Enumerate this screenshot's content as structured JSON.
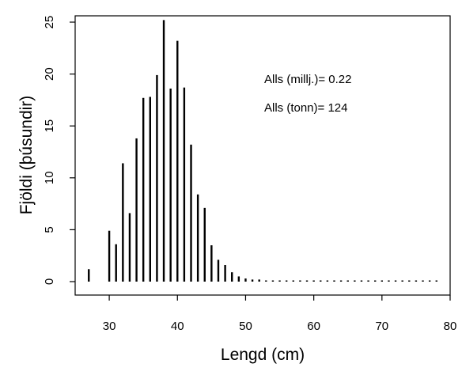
{
  "chart_data": {
    "type": "bar",
    "title": "",
    "xlabel": "Lengd (cm)",
    "ylabel": "Fjöldi (þúsundir)",
    "xlim": [
      25,
      80
    ],
    "ylim": [
      0,
      26.2
    ],
    "xticks": [
      30,
      40,
      50,
      60,
      70,
      80
    ],
    "yticks": [
      0,
      5,
      10,
      15,
      20,
      25
    ],
    "grid": false,
    "series": [
      {
        "x": [
          27,
          28,
          29,
          30,
          31,
          32,
          33,
          34,
          35,
          36,
          37,
          38,
          39,
          40,
          41,
          42,
          43,
          44,
          45,
          46,
          47,
          48,
          49,
          50,
          51,
          52,
          53,
          54,
          55,
          56,
          57,
          58,
          59,
          60,
          61,
          62,
          63,
          64,
          65,
          66,
          67,
          68,
          69,
          70,
          71,
          72,
          73,
          74,
          75,
          76,
          77,
          78
        ],
        "values": [
          1.2,
          0,
          0,
          4.9,
          3.6,
          11.4,
          6.6,
          13.8,
          17.7,
          17.8,
          19.9,
          25.2,
          18.6,
          23.2,
          18.7,
          13.2,
          8.4,
          7.1,
          3.5,
          2.1,
          1.6,
          0.9,
          0.5,
          0.3,
          0.2,
          0.2,
          0.1,
          0.1,
          0.1,
          0.1,
          0.1,
          0.1,
          0.1,
          0.1,
          0.1,
          0.1,
          0.1,
          0.1,
          0.1,
          0.1,
          0.1,
          0.1,
          0.1,
          0.1,
          0.1,
          0.1,
          0.1,
          0.1,
          0.1,
          0.1,
          0.1,
          0.1
        ]
      }
    ],
    "annotations": [
      {
        "text": "Alls (millj.)= 0.22"
      },
      {
        "text": "Alls (tonn)= 124"
      }
    ]
  }
}
